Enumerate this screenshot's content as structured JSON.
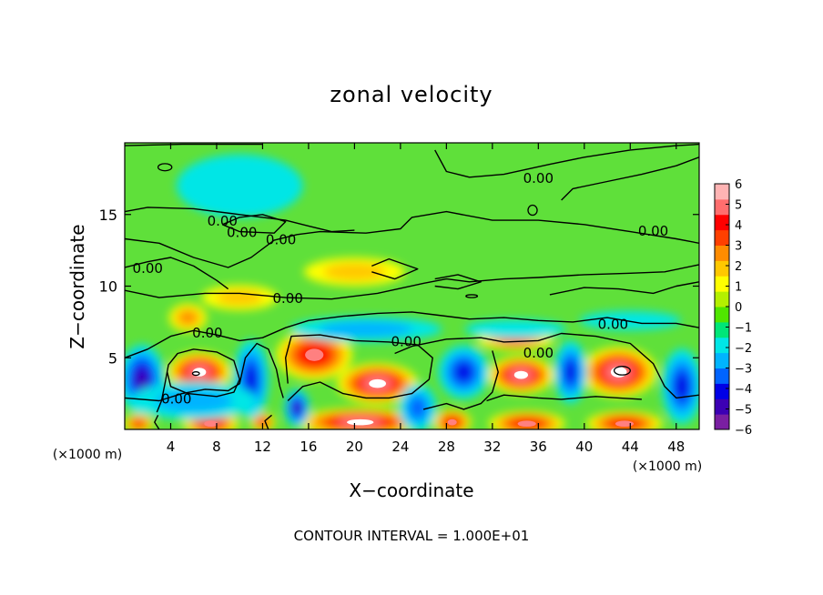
{
  "chart_data": {
    "type": "heatmap",
    "title": "zonal velocity",
    "xlabel": "X−coordinate",
    "ylabel": "Z−coordinate",
    "x_unit_left": "(×1000 m)",
    "x_unit_right": "(×1000 m)",
    "footer": "CONTOUR INTERVAL = 1.000E+01",
    "xlim": [
      0,
      50
    ],
    "ylim": [
      0,
      20
    ],
    "x_ticks": [
      4,
      8,
      12,
      16,
      20,
      24,
      28,
      32,
      36,
      40,
      44,
      48
    ],
    "x_tick_labels": [
      "4",
      "8",
      "12",
      "16",
      "20",
      "24",
      "28",
      "32",
      "36",
      "40",
      "44",
      "48"
    ],
    "y_ticks": [
      5,
      10,
      15
    ],
    "y_tick_labels": [
      "5",
      "10",
      "15"
    ],
    "colorbar": {
      "range": [
        -6,
        6
      ],
      "ticks": [
        6,
        5,
        4,
        3,
        2,
        1,
        0,
        -1,
        -2,
        -3,
        -4,
        -5,
        -6
      ],
      "tick_labels": [
        "6",
        "5",
        "4",
        "3",
        "2",
        "1",
        "0",
        "−1",
        "−2",
        "−3",
        "−4",
        "−5",
        "−6"
      ],
      "colors": [
        "#7a1fa2",
        "#3c00b4",
        "#0000e6",
        "#0064ff",
        "#00b4ff",
        "#00e6e6",
        "#00e678",
        "#50e600",
        "#b4f000",
        "#ffff00",
        "#ffc800",
        "#ff8c00",
        "#ff4000",
        "#ff0000",
        "#ff6e6e",
        "#ffb4b4"
      ]
    },
    "contour_label": "0.00",
    "features": [
      {
        "kind": "positive",
        "x": 6.5,
        "z": 4.0,
        "rx": 2.5,
        "rz": 1.3,
        "level": 7
      },
      {
        "kind": "positive",
        "x": 16.5,
        "z": 5.2,
        "rx": 3.0,
        "rz": 1.6,
        "level": 6
      },
      {
        "kind": "positive",
        "x": 22.0,
        "z": 3.2,
        "rx": 3.2,
        "rz": 1.3,
        "level": 7
      },
      {
        "kind": "positive",
        "x": 34.5,
        "z": 3.8,
        "rx": 2.6,
        "rz": 1.2,
        "level": 7
      },
      {
        "kind": "positive",
        "x": 43.0,
        "z": 4.0,
        "rx": 3.0,
        "rz": 1.6,
        "level": 7
      },
      {
        "kind": "positive",
        "x": 20.5,
        "z": 0.5,
        "rx": 5.0,
        "rz": 0.9,
        "level": 7
      },
      {
        "kind": "positive",
        "x": 7.5,
        "z": 0.4,
        "rx": 2.2,
        "rz": 0.8,
        "level": 6
      },
      {
        "kind": "positive",
        "x": 28.5,
        "z": 0.5,
        "rx": 1.5,
        "rz": 0.8,
        "level": 6
      },
      {
        "kind": "positive",
        "x": 35.0,
        "z": 0.4,
        "rx": 3.0,
        "rz": 0.8,
        "level": 6
      },
      {
        "kind": "positive",
        "x": 43.5,
        "z": 0.4,
        "rx": 3.0,
        "rz": 0.8,
        "level": 6
      },
      {
        "kind": "positive",
        "x": 12.0,
        "z": 0.5,
        "rx": 1.0,
        "rz": 0.6,
        "level": 5
      },
      {
        "kind": "positive",
        "x": 1.2,
        "z": 0.4,
        "rx": 1.2,
        "rz": 0.6,
        "level": 5
      },
      {
        "kind": "positive",
        "x": 5.5,
        "z": 7.8,
        "rx": 1.5,
        "rz": 0.9,
        "level": 3
      },
      {
        "kind": "positive",
        "x": 20.0,
        "z": 11.0,
        "rx": 4.0,
        "rz": 0.9,
        "level": 2
      },
      {
        "kind": "positive",
        "x": 10.0,
        "z": 9.2,
        "rx": 3.0,
        "rz": 0.8,
        "level": 2
      },
      {
        "kind": "positive",
        "x": 34.0,
        "z": 6.2,
        "rx": 3.0,
        "rz": 0.6,
        "level": 4
      },
      {
        "kind": "negative",
        "x": 1.5,
        "z": 3.5,
        "rx": 1.8,
        "rz": 2.2,
        "level": 5
      },
      {
        "kind": "negative",
        "x": 11.0,
        "z": 3.5,
        "rx": 1.4,
        "rz": 2.5,
        "level": 4
      },
      {
        "kind": "negative",
        "x": 29.5,
        "z": 4.0,
        "rx": 2.0,
        "rz": 1.7,
        "level": 4
      },
      {
        "kind": "negative",
        "x": 38.8,
        "z": 4.0,
        "rx": 1.3,
        "rz": 2.0,
        "level": 4
      },
      {
        "kind": "negative",
        "x": 48.5,
        "z": 3.0,
        "rx": 1.6,
        "rz": 2.4,
        "level": 4
      },
      {
        "kind": "negative",
        "x": 15.0,
        "z": 1.5,
        "rx": 1.0,
        "rz": 1.2,
        "level": 5
      },
      {
        "kind": "negative",
        "x": 25.5,
        "z": 1.5,
        "rx": 1.5,
        "rz": 1.5,
        "level": 3
      },
      {
        "kind": "negative",
        "x": 6.0,
        "z": 2.0,
        "rx": 5.0,
        "rz": 1.2,
        "level": 2
      },
      {
        "kind": "negative",
        "x": 21.0,
        "z": 7.0,
        "rx": 6.0,
        "rz": 0.8,
        "level": 2
      },
      {
        "kind": "negative",
        "x": 34.0,
        "z": 7.0,
        "rx": 4.0,
        "rz": 0.6,
        "level": 1
      },
      {
        "kind": "negative",
        "x": 44.0,
        "z": 7.6,
        "rx": 4.0,
        "rz": 0.6,
        "level": 1
      },
      {
        "kind": "negative",
        "x": 10.0,
        "z": 17.0,
        "rx": 5.0,
        "rz": 2.0,
        "level": 1
      }
    ],
    "contours": [
      {
        "points": [
          [
            0,
            19.8
          ],
          [
            5,
            19.9
          ],
          [
            12,
            19.9
          ]
        ]
      },
      {
        "points": [
          [
            27,
            19.5
          ],
          [
            28,
            18.0
          ],
          [
            30,
            17.6
          ],
          [
            33,
            17.8
          ],
          [
            37,
            18.5
          ],
          [
            40,
            19.0
          ],
          [
            44,
            19.5
          ],
          [
            48,
            19.8
          ],
          [
            50,
            19.9
          ]
        ]
      },
      {
        "points": [
          [
            38,
            16.0
          ],
          [
            39,
            16.8
          ],
          [
            42,
            17.3
          ],
          [
            45,
            17.8
          ],
          [
            48,
            18.4
          ],
          [
            50,
            19.0
          ]
        ]
      },
      {
        "points": [
          [
            0,
            15.2
          ],
          [
            2,
            15.5
          ],
          [
            6,
            15.4
          ],
          [
            10,
            15.0
          ],
          [
            14,
            14.6
          ],
          [
            16,
            14.2
          ],
          [
            18,
            13.8
          ],
          [
            20,
            13.9
          ]
        ]
      },
      {
        "points": [
          [
            0,
            13.3
          ],
          [
            3,
            13.0
          ],
          [
            6,
            12.0
          ],
          [
            9,
            11.3
          ],
          [
            11,
            12.0
          ],
          [
            13,
            13.2
          ],
          [
            15,
            13.6
          ],
          [
            17,
            13.8
          ],
          [
            21,
            13.7
          ],
          [
            24,
            14.0
          ],
          [
            25,
            14.8
          ],
          [
            28,
            15.2
          ],
          [
            32,
            14.6
          ],
          [
            36,
            14.6
          ],
          [
            40,
            14.3
          ],
          [
            44,
            13.8
          ],
          [
            48,
            13.3
          ],
          [
            50,
            13.0
          ]
        ]
      },
      {
        "points": [
          [
            0,
            11.3
          ],
          [
            2,
            11.7
          ],
          [
            4,
            12.0
          ],
          [
            6,
            11.4
          ],
          [
            8,
            10.4
          ],
          [
            9,
            9.8
          ]
        ]
      },
      {
        "points": [
          [
            0,
            9.7
          ],
          [
            3,
            9.2
          ],
          [
            7,
            9.5
          ],
          [
            10,
            9.5
          ],
          [
            14,
            9.2
          ],
          [
            18,
            9.1
          ],
          [
            22,
            9.5
          ],
          [
            26,
            10.2
          ],
          [
            28,
            10.5
          ],
          [
            30,
            10.3
          ],
          [
            33,
            10.5
          ],
          [
            36,
            10.6
          ],
          [
            40,
            10.8
          ],
          [
            44,
            10.9
          ],
          [
            47,
            11.0
          ],
          [
            50,
            11.5
          ]
        ]
      },
      {
        "points": [
          [
            37,
            9.4
          ],
          [
            40,
            9.9
          ],
          [
            43,
            9.8
          ],
          [
            46,
            9.5
          ],
          [
            48,
            10.0
          ],
          [
            50,
            10.3
          ]
        ]
      },
      {
        "points": [
          [
            0,
            5.0
          ],
          [
            2,
            5.6
          ],
          [
            4,
            6.5
          ],
          [
            6,
            6.9
          ],
          [
            8,
            6.6
          ],
          [
            10,
            6.2
          ],
          [
            12,
            6.4
          ],
          [
            14,
            7.1
          ],
          [
            16,
            7.6
          ],
          [
            19,
            7.9
          ],
          [
            22,
            8.1
          ],
          [
            25,
            8.2
          ],
          [
            27,
            8.0
          ],
          [
            30,
            7.7
          ],
          [
            33,
            7.8
          ],
          [
            36,
            7.6
          ],
          [
            39,
            7.5
          ],
          [
            42,
            7.8
          ],
          [
            45,
            7.4
          ],
          [
            48,
            7.4
          ],
          [
            50,
            7.1
          ]
        ]
      },
      {
        "points": [
          [
            0,
            2.2
          ],
          [
            3,
            2.0
          ],
          [
            5,
            2.5
          ],
          [
            7,
            2.8
          ],
          [
            9,
            2.7
          ],
          [
            10,
            3.2
          ],
          [
            10.5,
            5.0
          ],
          [
            11.5,
            6.0
          ],
          [
            12.5,
            5.6
          ],
          [
            13.2,
            4.2
          ],
          [
            13.5,
            3.0
          ],
          [
            13.8,
            2.2
          ]
        ]
      },
      {
        "points": [
          [
            14.2,
            2.0
          ],
          [
            15.5,
            3.0
          ],
          [
            17,
            3.3
          ],
          [
            19,
            2.5
          ],
          [
            21,
            2.2
          ],
          [
            23,
            2.2
          ],
          [
            25,
            2.5
          ],
          [
            26.5,
            3.5
          ],
          [
            26.8,
            5.0
          ],
          [
            25.5,
            5.9
          ],
          [
            23,
            6.1
          ],
          [
            20,
            6.2
          ],
          [
            17,
            6.6
          ],
          [
            14.5,
            6.5
          ],
          [
            14.0,
            5.0
          ],
          [
            14.2,
            3.2
          ]
        ]
      },
      {
        "points": [
          [
            23.5,
            5.3
          ],
          [
            25,
            5.8
          ],
          [
            28,
            6.3
          ],
          [
            31,
            6.4
          ],
          [
            33,
            6.1
          ],
          [
            36,
            6.2
          ],
          [
            38,
            6.7
          ],
          [
            41,
            6.5
          ],
          [
            44,
            6.0
          ],
          [
            46,
            4.6
          ],
          [
            47,
            3.0
          ],
          [
            48,
            2.2
          ],
          [
            50,
            2.4
          ]
        ]
      },
      {
        "points": [
          [
            31.5,
            2.0
          ],
          [
            33,
            2.4
          ],
          [
            36,
            2.2
          ],
          [
            38,
            2.1
          ],
          [
            41,
            2.3
          ],
          [
            43,
            2.2
          ],
          [
            45,
            2.1
          ]
        ]
      },
      {
        "points": [
          [
            26,
            1.4
          ],
          [
            28,
            1.8
          ],
          [
            29.5,
            1.4
          ],
          [
            31,
            1.8
          ],
          [
            32,
            2.6
          ],
          [
            32.5,
            4.0
          ],
          [
            32,
            5.5
          ]
        ]
      },
      {
        "points": [
          [
            2.8,
            1.2
          ],
          [
            3.2,
            2.0
          ],
          [
            3.5,
            3.2
          ],
          [
            3.8,
            4.5
          ],
          [
            4.6,
            5.3
          ],
          [
            6,
            5.6
          ],
          [
            8,
            5.4
          ],
          [
            9.5,
            4.8
          ],
          [
            10,
            3.5
          ],
          [
            9.5,
            2.6
          ],
          [
            8,
            2.3
          ],
          [
            5.5,
            2.5
          ],
          [
            4,
            3.0
          ],
          [
            3.7,
            4.0
          ]
        ]
      },
      {
        "points": [
          [
            3.0,
            0.0
          ],
          [
            2.6,
            0.5
          ],
          [
            2.9,
            1.0
          ]
        ]
      },
      {
        "points": [
          [
            12.5,
            0.0
          ],
          [
            12.2,
            0.6
          ],
          [
            12.8,
            1.0
          ]
        ]
      },
      {
        "points": [
          [
            21.5,
            11.0
          ],
          [
            23.5,
            10.5
          ],
          [
            25.5,
            11.2
          ],
          [
            23,
            11.9
          ],
          [
            21.5,
            11.4
          ]
        ]
      },
      {
        "points": [
          [
            27,
            10.0
          ],
          [
            29,
            9.8
          ],
          [
            31,
            10.3
          ],
          [
            29,
            10.8
          ],
          [
            27,
            10.5
          ]
        ]
      },
      {
        "points": [
          [
            8.5,
            14.3
          ],
          [
            10,
            14.8
          ],
          [
            12,
            15.0
          ],
          [
            14,
            14.5
          ],
          [
            13,
            13.7
          ],
          [
            10,
            13.8
          ],
          [
            8.5,
            14.3
          ]
        ]
      }
    ],
    "small_loops": [
      {
        "x": 3.5,
        "z": 18.3,
        "rx": 0.6,
        "rz": 0.25
      },
      {
        "x": 30.2,
        "z": 9.3,
        "rx": 0.5,
        "rz": 0.1
      },
      {
        "x": 35.5,
        "z": 15.3,
        "rx": 0.4,
        "rz": 0.35
      },
      {
        "x": 6.2,
        "z": 3.9,
        "rx": 0.3,
        "rz": 0.12
      },
      {
        "x": 43.3,
        "z": 4.1,
        "rx": 0.7,
        "rz": 0.3
      }
    ],
    "contour_labels": [
      {
        "x": 8.5,
        "z": 14.6,
        "text": "0.00"
      },
      {
        "x": 10.2,
        "z": 13.8,
        "text": "0.00"
      },
      {
        "x": 13.6,
        "z": 13.3,
        "text": "0.00"
      },
      {
        "x": 2.0,
        "z": 11.3,
        "text": "0.00"
      },
      {
        "x": 14.2,
        "z": 9.2,
        "text": "0.00"
      },
      {
        "x": 7.2,
        "z": 6.8,
        "text": "0.00"
      },
      {
        "x": 4.5,
        "z": 2.2,
        "text": "0.00"
      },
      {
        "x": 24.5,
        "z": 6.2,
        "text": "0.00"
      },
      {
        "x": 36.0,
        "z": 5.4,
        "text": "0.00"
      },
      {
        "x": 42.5,
        "z": 7.4,
        "text": "0.00"
      },
      {
        "x": 46.0,
        "z": 13.9,
        "text": "0.00"
      },
      {
        "x": 36.0,
        "z": 17.6,
        "text": "0.00"
      }
    ]
  }
}
